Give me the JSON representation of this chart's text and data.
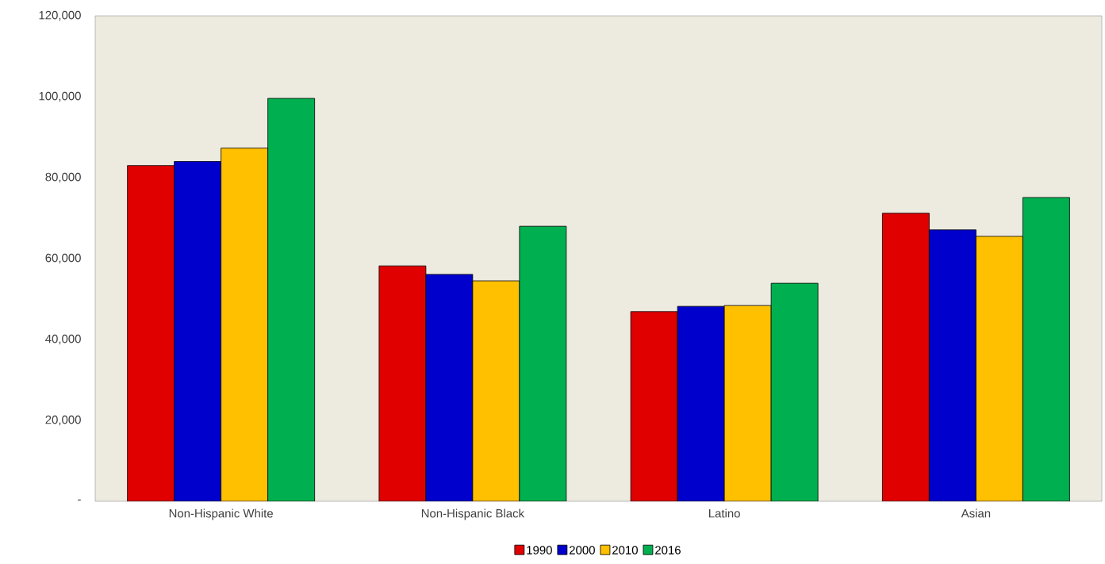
{
  "chart_data": {
    "type": "bar",
    "categories": [
      "Non-Hispanic White",
      "Non-Hispanic Black",
      "Latino",
      "Asian"
    ],
    "series": [
      {
        "name": "1990",
        "color": "#e00000",
        "values": [
          83000,
          58200,
          46900,
          71200
        ]
      },
      {
        "name": "2000",
        "color": "#0000cc",
        "values": [
          84000,
          56100,
          48200,
          67100
        ]
      },
      {
        "name": "2010",
        "color": "#ffc000",
        "values": [
          87300,
          54500,
          48400,
          65500
        ]
      },
      {
        "name": "2016",
        "color": "#00b050",
        "values": [
          99600,
          68000,
          53900,
          75100
        ]
      }
    ],
    "ylim": [
      0,
      120000
    ],
    "yticks": [
      {
        "value": 0,
        "label": "-"
      },
      {
        "value": 20000,
        "label": "20,000"
      },
      {
        "value": 40000,
        "label": "40,000"
      },
      {
        "value": 60000,
        "label": "60,000"
      },
      {
        "value": 80000,
        "label": "80,000"
      },
      {
        "value": 100000,
        "label": "100,000"
      },
      {
        "value": 120000,
        "label": "120,000"
      }
    ],
    "grid": false,
    "legend": "bottom"
  }
}
